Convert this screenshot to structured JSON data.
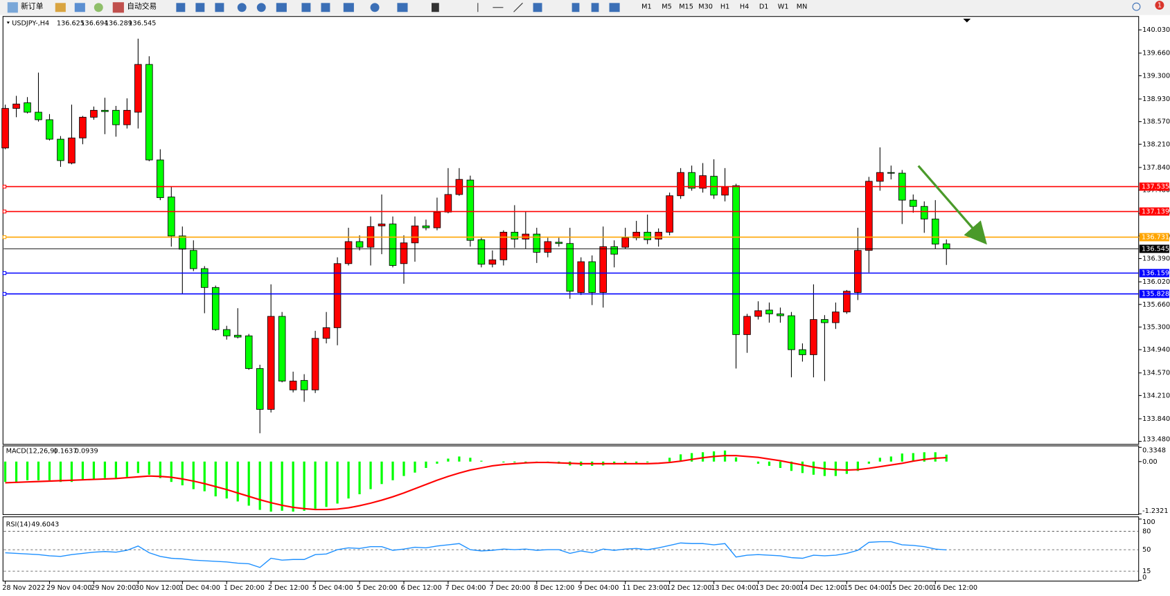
{
  "toolbar": {
    "new_order": "新订单",
    "auto_trading": "自动交易",
    "timeframes": [
      "M1",
      "M5",
      "M15",
      "M30",
      "H1",
      "H4",
      "D1",
      "W1",
      "MN"
    ],
    "notification_count": "1"
  },
  "chart_data": [
    {
      "type": "candlestick",
      "title": "USDJPY-,H4",
      "up_color": "#ff0000",
      "down_color": "#00ff00",
      "categories": [
        "28 Nov 2022",
        null,
        null,
        null,
        "29 Nov 04:00",
        null,
        null,
        null,
        "29 Nov 20:00",
        null,
        null,
        null,
        "30 Nov 12:00",
        null,
        null,
        null,
        "1 Dec 04:00",
        null,
        null,
        null,
        "1 Dec 20:00",
        null,
        null,
        null,
        "2 Dec 12:00",
        null,
        null,
        null,
        "5 Dec 04:00",
        null,
        null,
        null,
        "5 Dec 20:00",
        null,
        null,
        null,
        "6 Dec 12:00",
        null,
        null,
        null,
        "7 Dec 04:00",
        null,
        null,
        null,
        "7 Dec 20:00",
        null,
        null,
        null,
        "8 Dec 12:00",
        null,
        null,
        null,
        "9 Dec 04:00",
        null,
        null,
        null,
        "11 Dec 23:00",
        null,
        null,
        null,
        "12 Dec 12:00",
        null,
        null,
        null,
        "13 Dec 04:00",
        null,
        null,
        null,
        "13 Dec 20:00",
        null,
        null,
        null,
        "14 Dec 12:00",
        null,
        null,
        null,
        "15 Dec 04:00",
        null,
        null,
        null,
        "15 Dec 20:00",
        null,
        null,
        null,
        "16 Dec 12:00",
        null
      ],
      "open": [
        138.15,
        138.78,
        138.87,
        138.72,
        138.6,
        138.29,
        137.91,
        138.31,
        138.64,
        138.75,
        138.75,
        138.52,
        138.72,
        139.48,
        137.96,
        137.37,
        136.75,
        136.52,
        136.23,
        135.93,
        135.26,
        135.17,
        135.16,
        134.64,
        133.99,
        135.47,
        134.3,
        134.45,
        134.3,
        135.12,
        135.29,
        136.31,
        136.66,
        136.57,
        136.91,
        136.94,
        136.31,
        136.64,
        136.91,
        136.88,
        137.13,
        137.41,
        137.64,
        136.69,
        136.3,
        136.37,
        136.81,
        136.7,
        136.78,
        136.49,
        136.65,
        136.63,
        135.85,
        136.34,
        135.85,
        136.58,
        136.57,
        136.72,
        136.81,
        136.7,
        136.81,
        137.39,
        137.76,
        137.51,
        137.7,
        137.4,
        137.55,
        135.18,
        135.47,
        135.57,
        135.51,
        135.48,
        134.94,
        134.86,
        135.42,
        135.37,
        135.54,
        135.85,
        136.52,
        137.62,
        137.76,
        137.75,
        137.32,
        137.22,
        137.02,
        136.625
      ],
      "high": [
        138.84,
        138.98,
        138.96,
        139.35,
        138.69,
        138.34,
        138.84,
        138.66,
        138.81,
        138.95,
        138.82,
        138.94,
        139.89,
        139.61,
        138.13,
        137.53,
        136.9,
        136.68,
        136.27,
        135.96,
        135.32,
        135.6,
        135.19,
        134.7,
        135.98,
        135.54,
        134.59,
        134.55,
        135.24,
        135.54,
        136.41,
        136.88,
        136.76,
        137.06,
        137.41,
        137.06,
        136.76,
        137.06,
        137.01,
        137.36,
        137.83,
        137.83,
        137.71,
        136.72,
        136.52,
        136.84,
        137.24,
        137.14,
        136.88,
        136.72,
        136.72,
        136.88,
        136.41,
        136.44,
        136.9,
        136.68,
        136.88,
        136.99,
        137.09,
        136.87,
        137.44,
        137.83,
        137.87,
        137.91,
        137.97,
        137.83,
        137.58,
        135.51,
        135.71,
        135.69,
        135.61,
        135.54,
        135.04,
        135.98,
        135.49,
        135.69,
        135.89,
        136.88,
        137.69,
        138.16,
        137.87,
        137.8,
        137.41,
        137.3,
        137.32,
        136.694
      ],
      "low": [
        138.13,
        138.64,
        138.7,
        138.57,
        138.27,
        137.85,
        137.89,
        138.21,
        138.6,
        138.37,
        138.33,
        138.46,
        138.46,
        137.94,
        137.32,
        136.58,
        135.83,
        136.19,
        135.52,
        135.24,
        135.1,
        135.12,
        134.62,
        133.61,
        133.94,
        134.42,
        134.26,
        134.11,
        134.25,
        135.04,
        135.01,
        136.28,
        136.52,
        136.28,
        136.46,
        136.25,
        135.99,
        136.34,
        136.84,
        136.84,
        137.11,
        137.39,
        136.58,
        136.25,
        136.25,
        136.28,
        136.56,
        136.55,
        136.32,
        136.41,
        136.58,
        135.75,
        135.81,
        135.65,
        135.61,
        136.25,
        136.55,
        136.68,
        136.62,
        136.58,
        136.76,
        137.34,
        137.47,
        137.44,
        137.34,
        137.3,
        134.64,
        134.89,
        135.42,
        135.37,
        135.37,
        134.5,
        134.75,
        134.5,
        134.44,
        135.27,
        135.51,
        135.73,
        136.17,
        137.47,
        137.65,
        136.94,
        137.12,
        136.8,
        136.55,
        136.289
      ],
      "close": [
        138.78,
        138.85,
        138.72,
        138.6,
        138.29,
        137.95,
        138.31,
        138.64,
        138.75,
        138.73,
        138.52,
        138.75,
        139.48,
        137.96,
        137.36,
        136.75,
        136.54,
        136.23,
        135.93,
        135.26,
        135.16,
        135.14,
        134.64,
        133.99,
        135.47,
        134.44,
        134.44,
        134.3,
        135.12,
        135.29,
        136.31,
        136.66,
        136.57,
        136.9,
        136.94,
        136.28,
        136.64,
        136.91,
        136.88,
        137.13,
        137.41,
        137.65,
        136.68,
        136.3,
        136.37,
        136.81,
        136.7,
        136.78,
        136.49,
        136.66,
        136.63,
        135.87,
        136.34,
        135.85,
        136.58,
        136.46,
        136.72,
        136.81,
        136.69,
        136.81,
        137.39,
        137.76,
        137.51,
        137.71,
        137.4,
        137.53,
        135.18,
        135.47,
        135.56,
        135.51,
        135.48,
        134.94,
        134.86,
        135.42,
        135.37,
        135.54,
        135.87,
        136.52,
        137.62,
        137.76,
        137.75,
        137.32,
        137.22,
        137.02,
        136.62,
        136.545
      ],
      "ylim": [
        133.48,
        140.03
      ],
      "yticks": [
        {
          "value": 140.03,
          "label": "140.030"
        },
        {
          "value": 139.66,
          "label": "139.660"
        },
        {
          "value": 139.3,
          "label": "139.300"
        },
        {
          "value": 138.93,
          "label": "138.930"
        },
        {
          "value": 138.57,
          "label": "138.570"
        },
        {
          "value": 138.21,
          "label": "138.210"
        },
        {
          "value": 137.84,
          "label": "137.840"
        },
        {
          "value": 137.48,
          "label": "137.480"
        },
        {
          "value": 137.11,
          "label": "137.110"
        },
        {
          "value": 136.75,
          "label": "136.750"
        },
        {
          "value": 136.39,
          "label": "136.390"
        },
        {
          "value": 136.02,
          "label": "136.020"
        },
        {
          "value": 135.66,
          "label": "135.660"
        },
        {
          "value": 135.3,
          "label": "135.300"
        },
        {
          "value": 134.94,
          "label": "134.940"
        },
        {
          "value": 134.57,
          "label": "134.570"
        },
        {
          "value": 134.21,
          "label": "134.210"
        },
        {
          "value": 133.84,
          "label": "133.840"
        },
        {
          "value": 133.48,
          "label": "133.480"
        }
      ],
      "levels": [
        {
          "value": 137.535,
          "color": "#ff0000"
        },
        {
          "value": 137.139,
          "color": "#ff0000"
        },
        {
          "value": 136.731,
          "color": "#ffa500"
        },
        {
          "value": 136.159,
          "color": "#0000ff"
        },
        {
          "value": 135.828,
          "color": "#0000ff"
        }
      ]
    },
    {
      "type": "macd",
      "title": "MACD(12,26,9)",
      "ylim": [
        -1.2321,
        0.3348
      ],
      "yticks": [
        0.3348,
        {
          "value": 0,
          "label": "0.00"
        },
        -1.2321
      ],
      "series": [
        {
          "name": "MACD",
          "color": "#00ff00",
          "values": [
            -0.48,
            -0.48,
            -0.44,
            -0.44,
            -0.44,
            -0.48,
            -0.48,
            -0.44,
            -0.43,
            -0.39,
            -0.39,
            -0.36,
            -0.27,
            -0.31,
            -0.39,
            -0.48,
            -0.56,
            -0.65,
            -0.7,
            -0.82,
            -0.87,
            -0.94,
            -1.04,
            -1.14,
            -1.18,
            -1.16,
            -1.18,
            -1.16,
            -1.11,
            -1.07,
            -0.99,
            -0.87,
            -0.77,
            -0.65,
            -0.53,
            -0.44,
            -0.34,
            -0.26,
            -0.15,
            -0.05,
            0.07,
            0.12,
            0.09,
            0.02,
            0,
            -0.02,
            -0.02,
            -0.02,
            -0.03,
            -0.03,
            -0.05,
            -0.09,
            -0.1,
            -0.1,
            -0.09,
            -0.07,
            -0.05,
            -0.03,
            -0.02,
            0,
            0.09,
            0.17,
            0.2,
            0.22,
            0.24,
            0.26,
            0.1,
            0,
            -0.05,
            -0.1,
            -0.15,
            -0.22,
            -0.27,
            -0.31,
            -0.34,
            -0.34,
            -0.29,
            -0.22,
            -0.05,
            0.09,
            0.12,
            0.19,
            0.2,
            0.22,
            0.22,
            0.1637
          ]
        },
        {
          "name": "Signal",
          "color": "#ff0000",
          "values": [
            -0.5,
            -0.49,
            -0.48,
            -0.47,
            -0.46,
            -0.45,
            -0.44,
            -0.43,
            -0.42,
            -0.41,
            -0.4,
            -0.38,
            -0.36,
            -0.34,
            -0.35,
            -0.37,
            -0.41,
            -0.46,
            -0.52,
            -0.59,
            -0.66,
            -0.74,
            -0.82,
            -0.9,
            -0.97,
            -1.03,
            -1.08,
            -1.11,
            -1.13,
            -1.13,
            -1.12,
            -1.09,
            -1.04,
            -0.98,
            -0.91,
            -0.83,
            -0.74,
            -0.64,
            -0.54,
            -0.44,
            -0.35,
            -0.27,
            -0.2,
            -0.15,
            -0.1,
            -0.07,
            -0.05,
            -0.03,
            -0.02,
            -0.02,
            -0.03,
            -0.04,
            -0.05,
            -0.05,
            -0.05,
            -0.05,
            -0.05,
            -0.05,
            -0.05,
            -0.04,
            -0.02,
            0.01,
            0.05,
            0.09,
            0.12,
            0.14,
            0.14,
            0.12,
            0.1,
            0.06,
            0.02,
            -0.03,
            -0.08,
            -0.13,
            -0.17,
            -0.19,
            -0.2,
            -0.19,
            -0.16,
            -0.12,
            -0.08,
            -0.04,
            0.01,
            0.05,
            0.08,
            0.0939
          ]
        }
      ]
    },
    {
      "type": "line",
      "title": "RSI(14)",
      "color": "#1e90ff",
      "ylim": [
        0,
        100
      ],
      "yticks": [
        100,
        80,
        50,
        15,
        0
      ],
      "values": [
        45,
        44,
        43,
        42,
        40,
        39,
        42,
        44,
        46,
        47,
        46,
        49,
        56,
        45,
        39,
        36,
        35,
        33,
        32,
        31,
        30,
        28,
        27,
        21,
        36,
        33,
        34,
        34,
        42,
        43,
        50,
        53,
        52,
        55,
        55,
        49,
        51,
        54,
        53,
        56,
        58,
        60,
        50,
        48,
        49,
        51,
        50,
        51,
        49,
        50,
        50,
        44,
        48,
        45,
        51,
        49,
        51,
        52,
        50,
        53,
        57,
        61,
        60,
        60,
        58,
        60,
        38,
        41,
        42,
        41,
        40,
        37,
        36,
        41,
        40,
        41,
        44,
        49,
        62,
        63,
        63,
        58,
        57,
        55,
        51,
        49.6043
      ]
    }
  ]
}
